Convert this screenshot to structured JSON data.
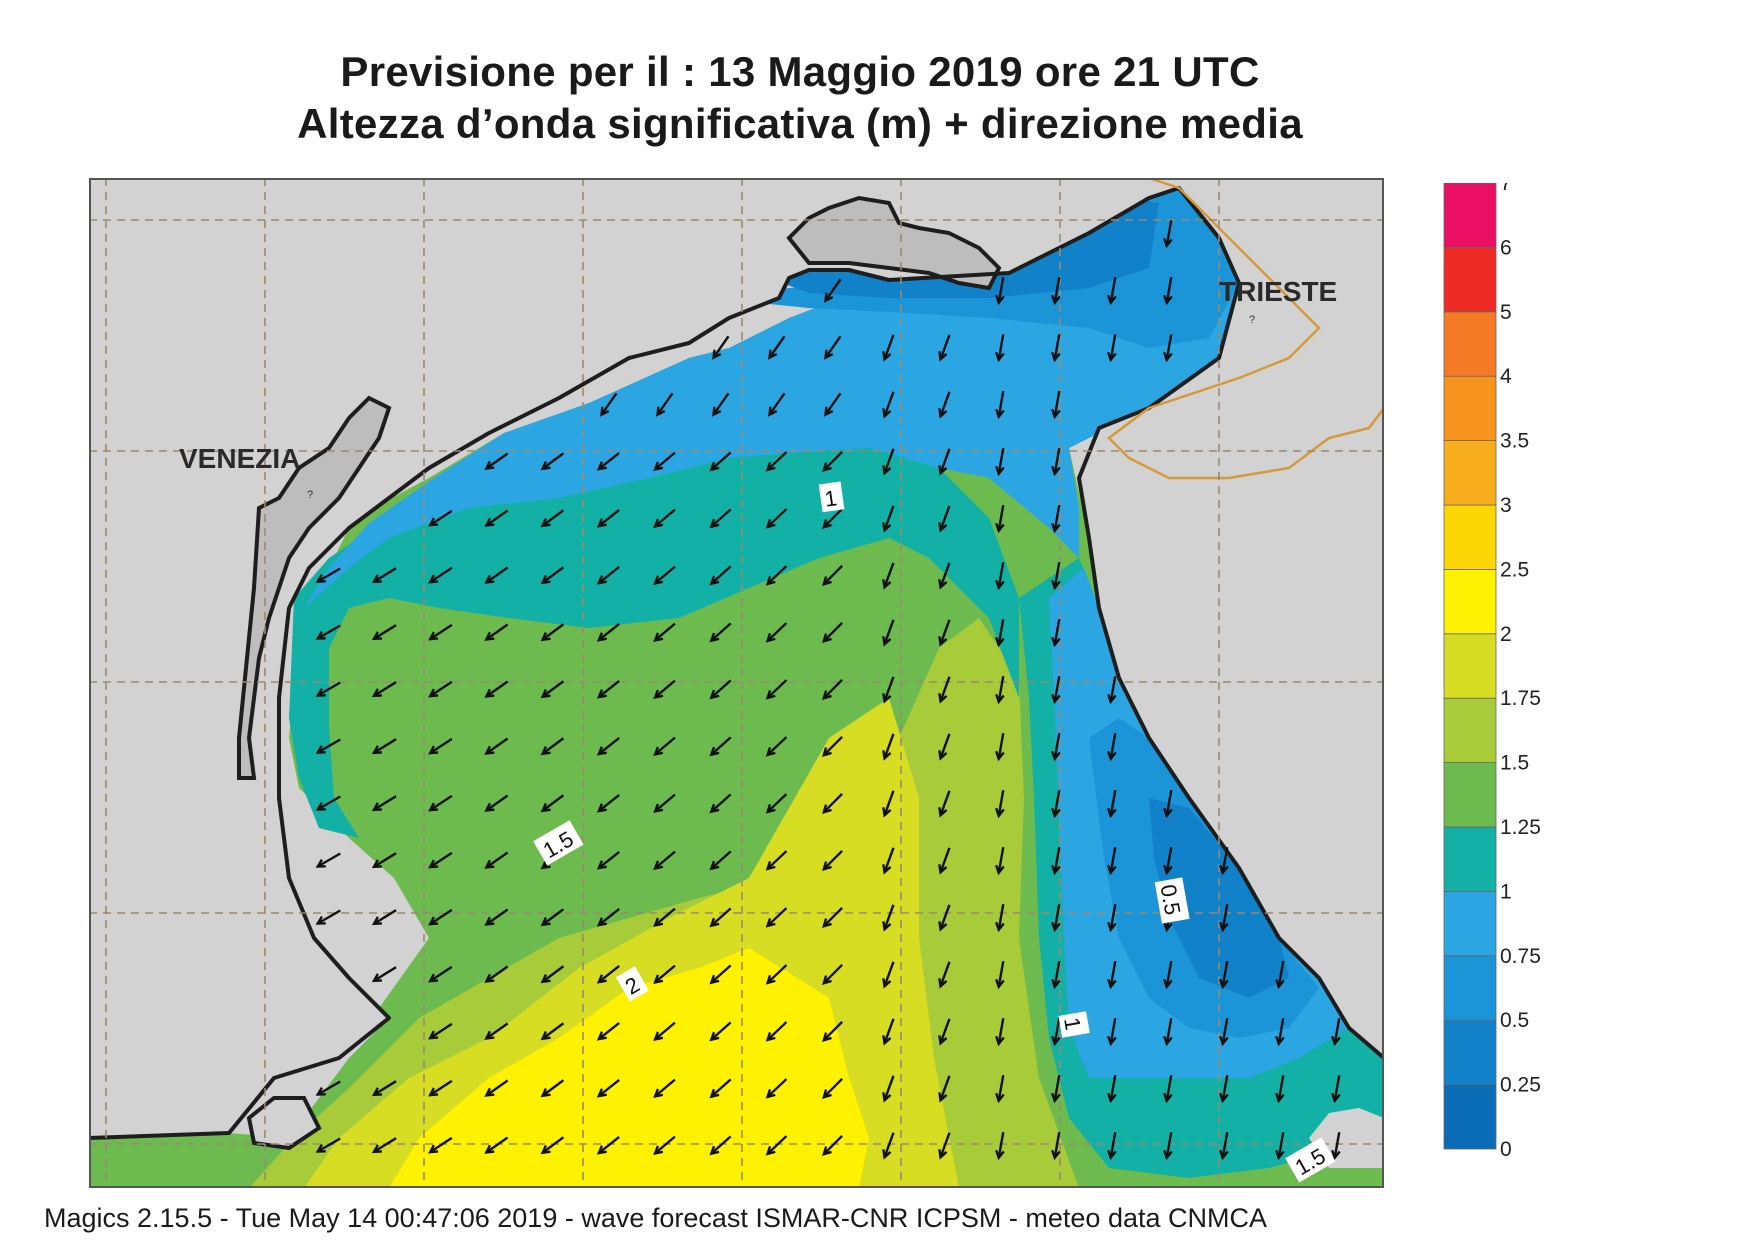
{
  "title_line1": "Previsione per il  :  13   Maggio  2019   ore 21 UTC",
  "title_line2": "Altezza d’onda significativa (m) + direzione media",
  "footer": "Magics 2.15.5 - Tue May 14 00:47:06 2019 - wave forecast  ISMAR-CNR  ICPSM - meteo data   CNMCA",
  "places": [
    {
      "id": "venezia",
      "label": "VENEZIA"
    },
    {
      "id": "trieste",
      "label": "TRIESTE"
    }
  ],
  "contour_labels": [
    "1",
    "1.5",
    "2",
    "0.5",
    "1",
    "1.5"
  ],
  "legend": {
    "ticks": [
      "0",
      "0.25",
      "0.5",
      "0.75",
      "1",
      "1.25",
      "1.5",
      "1.75",
      "2",
      "2.5",
      "3",
      "3.5",
      "4",
      "5",
      "6",
      "7"
    ],
    "colors": [
      "#0a6cb7",
      "#1181c9",
      "#1b94d8",
      "#2ba6e2",
      "#13b0a6",
      "#6dbb4e",
      "#a8cb3a",
      "#d6dd22",
      "#fff200",
      "#fdd605",
      "#f8ad1c",
      "#f7941d",
      "#f47a25",
      "#ed2a24",
      "#ec1065"
    ]
  },
  "colors": {
    "land": "#d2d2d2",
    "coast": "#1e1e1e",
    "grid": "#9a8a70",
    "border": "#d49a3a"
  }
}
